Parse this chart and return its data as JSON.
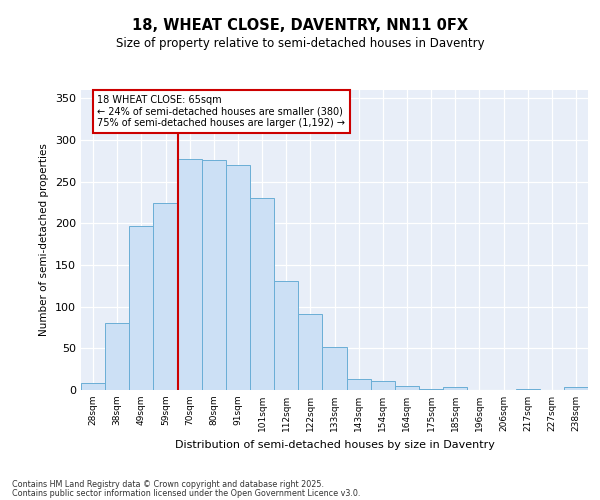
{
  "title1": "18, WHEAT CLOSE, DAVENTRY, NN11 0FX",
  "title2": "Size of property relative to semi-detached houses in Daventry",
  "xlabel": "Distribution of semi-detached houses by size in Daventry",
  "ylabel": "Number of semi-detached properties",
  "categories": [
    "28sqm",
    "38sqm",
    "49sqm",
    "59sqm",
    "70sqm",
    "80sqm",
    "91sqm",
    "101sqm",
    "112sqm",
    "122sqm",
    "133sqm",
    "143sqm",
    "154sqm",
    "164sqm",
    "175sqm",
    "185sqm",
    "196sqm",
    "206sqm",
    "217sqm",
    "227sqm",
    "238sqm"
  ],
  "values": [
    8,
    80,
    197,
    224,
    277,
    276,
    270,
    231,
    131,
    91,
    52,
    13,
    11,
    5,
    1,
    4,
    0,
    0,
    1,
    0,
    4
  ],
  "bar_color": "#cce0f5",
  "bar_edge_color": "#6aaed6",
  "vline_x": 3.5,
  "vline_color": "#cc0000",
  "annotation_text": "18 WHEAT CLOSE: 65sqm\n← 24% of semi-detached houses are smaller (380)\n75% of semi-detached houses are larger (1,192) →",
  "annotation_box_color": "#ffffff",
  "annotation_box_edge": "#cc0000",
  "ylim": [
    0,
    360
  ],
  "yticks": [
    0,
    50,
    100,
    150,
    200,
    250,
    300,
    350
  ],
  "bg_color": "#ffffff",
  "plot_bg": "#e8eef8",
  "footer1": "Contains HM Land Registry data © Crown copyright and database right 2025.",
  "footer2": "Contains public sector information licensed under the Open Government Licence v3.0."
}
